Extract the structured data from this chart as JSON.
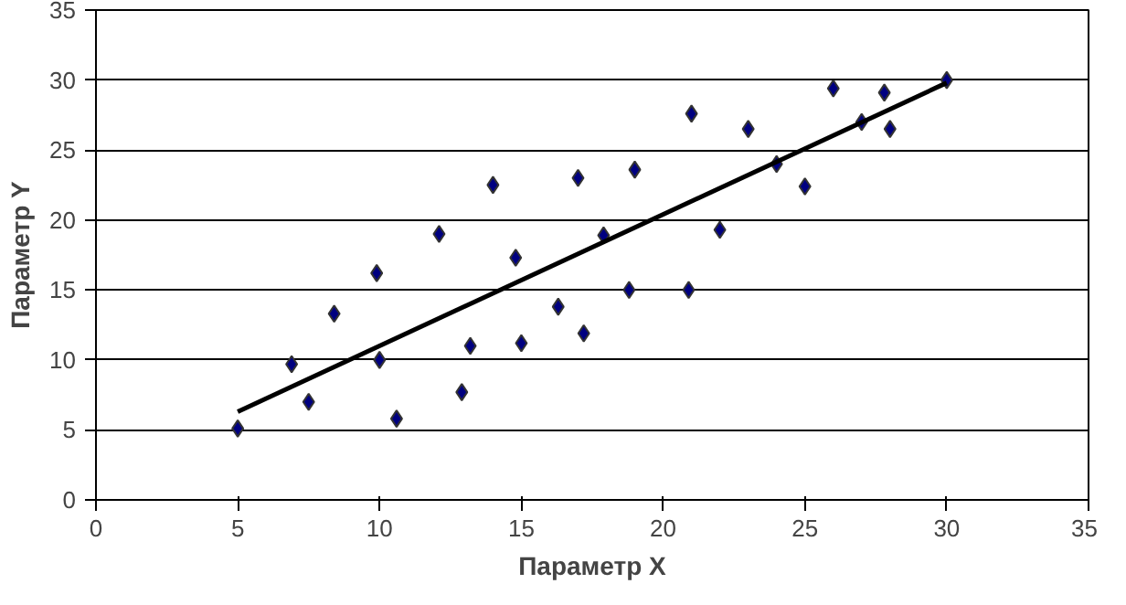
{
  "chart_data": {
    "type": "scatter",
    "xlabel": "Параметр X",
    "ylabel": "Параметр Y",
    "xlim": [
      0,
      35
    ],
    "xticks": [
      0,
      5,
      10,
      15,
      20,
      25,
      30,
      35
    ],
    "ylim": [
      0,
      35
    ],
    "yticks": [
      0,
      5,
      10,
      15,
      20,
      25,
      30,
      35
    ],
    "grid": "y",
    "series": [
      {
        "marker": "diamond",
        "color": "#000080",
        "x": [
          5,
          6.9,
          7.5,
          8.4,
          9.9,
          10,
          10.6,
          12.1,
          12.9,
          13.2,
          14,
          14.8,
          15,
          16.3,
          17,
          17.2,
          17.9,
          18.8,
          19,
          20.9,
          21,
          22,
          23,
          24,
          25,
          26,
          27,
          27.8,
          28,
          30
        ],
        "values": [
          5.1,
          9.7,
          7,
          13.3,
          16.2,
          10,
          5.8,
          19,
          7.7,
          11,
          22.5,
          17.3,
          11.2,
          13.8,
          23,
          11.9,
          18.9,
          15,
          23.6,
          15,
          27.6,
          19.3,
          26.5,
          24,
          22.4,
          29.4,
          27,
          29.1,
          26.5,
          30
        ]
      },
      {
        "type": "line",
        "marker": "none",
        "color": "#000000",
        "x": [
          5,
          30
        ],
        "values": [
          6.3,
          29.8
        ]
      }
    ]
  }
}
